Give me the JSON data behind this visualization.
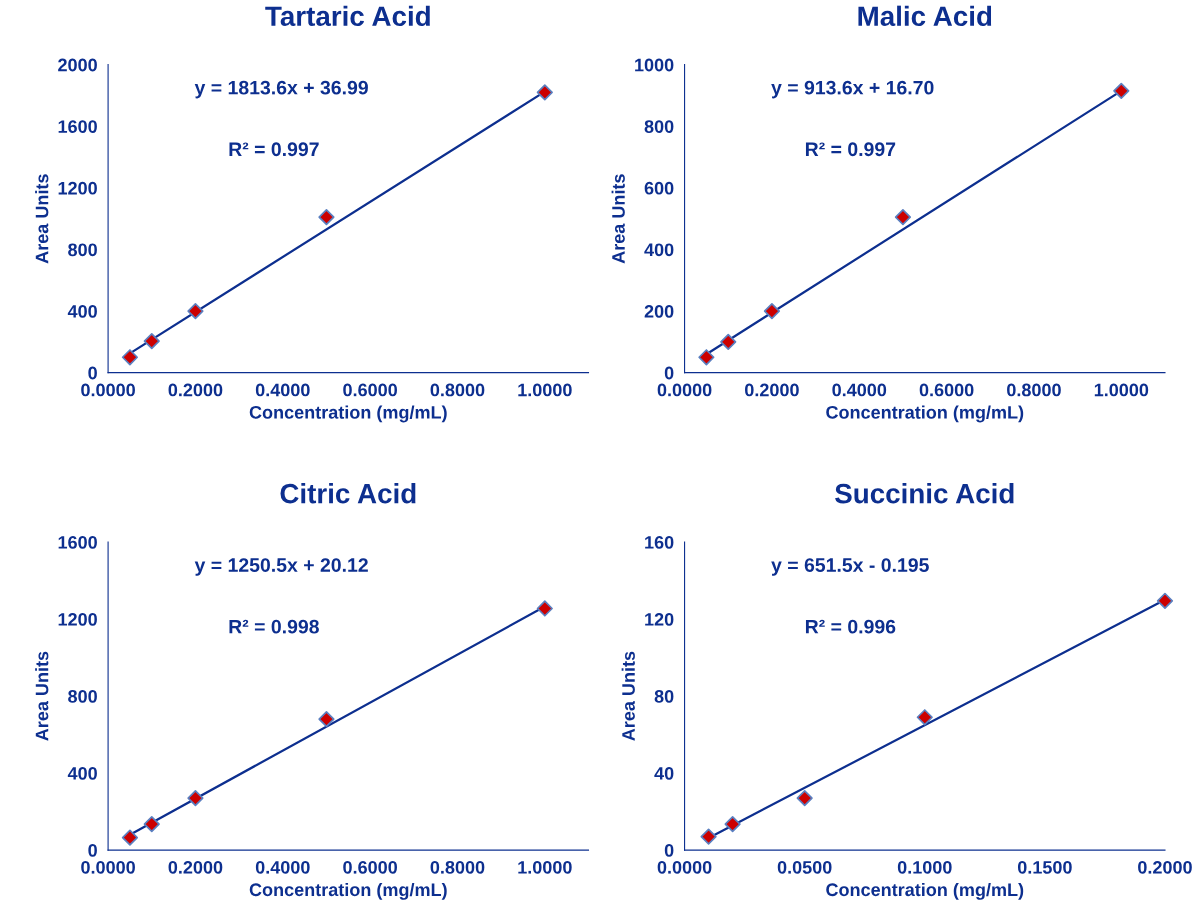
{
  "chart_data": [
    {
      "type": "scatter",
      "title": "Tartaric Acid",
      "xlabel": "Concentration (mg/mL)",
      "ylabel": "Area Units",
      "annotations": [
        "y = 1813.6x + 36.99",
        "R² = 0.997"
      ],
      "x": [
        0.05,
        0.1,
        0.2,
        0.5,
        1.0
      ],
      "marker": "diamond",
      "grid": false,
      "legend": false,
      "series": [
        {
          "color": "#cc0000",
          "values": [
            100,
            205,
            400,
            1010,
            1820
          ]
        },
        {
          "type": "line",
          "color": "#0d2f8f",
          "x": [
            0.05,
            1.0
          ],
          "values": [
            125,
            1825
          ],
          "marker": "none"
        }
      ],
      "xlim": [
        0,
        1.1
      ],
      "xticks": [
        {
          "value": 0,
          "label": "0.0000"
        },
        {
          "value": 0.2,
          "label": "0.2000"
        },
        {
          "value": 0.4,
          "label": "0.4000"
        },
        {
          "value": 0.6,
          "label": "0.6000"
        },
        {
          "value": 0.8,
          "label": "0.8000"
        },
        {
          "value": 1.0,
          "label": "1.0000"
        }
      ],
      "ylim": [
        0,
        2000
      ],
      "yticks": [
        0,
        400,
        800,
        1200,
        1600,
        2000
      ]
    },
    {
      "type": "scatter",
      "title": "Malic Acid",
      "xlabel": "Concentration (mg/mL)",
      "ylabel": "Area Units",
      "annotations": [
        "y = 913.6x + 16.70",
        "R² = 0.997"
      ],
      "x": [
        0.05,
        0.1,
        0.2,
        0.5,
        1.0
      ],
      "marker": "diamond",
      "grid": false,
      "legend": false,
      "series": [
        {
          "color": "#cc0000",
          "values": [
            50,
            100,
            200,
            505,
            915
          ]
        },
        {
          "type": "line",
          "color": "#0d2f8f",
          "x": [
            0.05,
            1.0
          ],
          "values": [
            60,
            915
          ],
          "marker": "none"
        }
      ],
      "xlim": [
        0,
        1.1
      ],
      "xticks": [
        {
          "value": 0,
          "label": "0.0000"
        },
        {
          "value": 0.2,
          "label": "0.2000"
        },
        {
          "value": 0.4,
          "label": "0.4000"
        },
        {
          "value": 0.6,
          "label": "0.6000"
        },
        {
          "value": 0.8,
          "label": "0.8000"
        },
        {
          "value": 1.0,
          "label": "1.0000"
        }
      ],
      "ylim": [
        0,
        1000
      ],
      "yticks": [
        0,
        200,
        400,
        600,
        800,
        1000
      ]
    },
    {
      "type": "scatter",
      "title": "Citric Acid",
      "xlabel": "Concentration (mg/mL)",
      "ylabel": "Area Units",
      "annotations": [
        "y = 1250.5x + 20.12",
        "R² = 0.998"
      ],
      "x": [
        0.05,
        0.1,
        0.2,
        0.5,
        1.0
      ],
      "marker": "diamond",
      "grid": false,
      "legend": false,
      "series": [
        {
          "color": "#cc0000",
          "values": [
            65,
            135,
            270,
            680,
            1255
          ]
        },
        {
          "type": "line",
          "color": "#0d2f8f",
          "x": [
            0.05,
            1.0
          ],
          "values": [
            80,
            1265
          ],
          "marker": "none"
        }
      ],
      "xlim": [
        0,
        1.1
      ],
      "xticks": [
        {
          "value": 0,
          "label": "0.0000"
        },
        {
          "value": 0.2,
          "label": "0.2000"
        },
        {
          "value": 0.4,
          "label": "0.4000"
        },
        {
          "value": 0.6,
          "label": "0.6000"
        },
        {
          "value": 0.8,
          "label": "0.8000"
        },
        {
          "value": 1.0,
          "label": "1.0000"
        }
      ],
      "ylim": [
        0,
        1600
      ],
      "yticks": [
        0,
        400,
        800,
        1200,
        1600
      ]
    },
    {
      "type": "scatter",
      "title": "Succinic Acid",
      "xlabel": "Concentration (mg/mL)",
      "ylabel": "Area Units",
      "annotations": [
        "y = 651.5x - 0.195",
        "R² = 0.996"
      ],
      "x": [
        0.01,
        0.02,
        0.05,
        0.1,
        0.2
      ],
      "marker": "diamond",
      "grid": false,
      "legend": false,
      "series": [
        {
          "color": "#cc0000",
          "values": [
            7,
            13.5,
            27,
            69,
            129.5
          ]
        },
        {
          "type": "line",
          "color": "#0d2f8f",
          "x": [
            0.01,
            0.2
          ],
          "values": [
            6.3,
            130
          ],
          "marker": "none"
        }
      ],
      "xlim": [
        0,
        0.2
      ],
      "xticks": [
        {
          "value": 0,
          "label": "0.0000"
        },
        {
          "value": 0.05,
          "label": "0.0500"
        },
        {
          "value": 0.1,
          "label": "0.1000"
        },
        {
          "value": 0.15,
          "label": "0.1500"
        },
        {
          "value": 0.2,
          "label": "0.2000"
        }
      ],
      "ylim": [
        0,
        160
      ],
      "yticks": [
        0,
        40,
        80,
        120,
        160
      ]
    }
  ]
}
